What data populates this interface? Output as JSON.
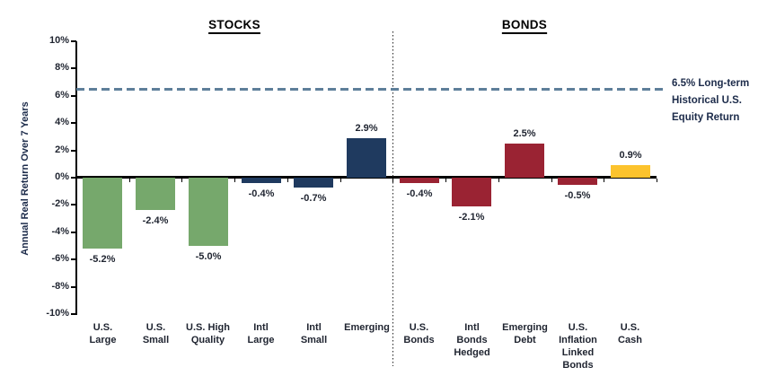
{
  "chart_data": {
    "type": "bar",
    "group_titles": [
      "STOCKS",
      "BONDS"
    ],
    "ylabel": "Annual Real Return Over 7 Years",
    "ylim": [
      -10,
      10
    ],
    "ytick_values": [
      10,
      8,
      6,
      4,
      2,
      0,
      -2,
      -4,
      -6,
      -8,
      -10
    ],
    "ytick_labels": [
      "10%",
      "8%",
      "6%",
      "4%",
      "2%",
      "0%",
      "-2%",
      "-4%",
      "-6%",
      "-8%",
      "-10%"
    ],
    "grid": false,
    "reference_line": {
      "value": 6.5,
      "label": "6.5% Long-term\nHistorical U.S.\nEquity Return",
      "style": "dashed",
      "color": "#5E7F9A"
    },
    "colors": {
      "us_stocks": "#76A86C",
      "intl_stocks": "#1F3A5F",
      "bonds": "#9A2333",
      "cash": "#FCC32D"
    },
    "points": [
      {
        "group": "STOCKS",
        "category": "U.S.\nLarge",
        "value": -5.2,
        "label": "-5.2%",
        "color": "#76A86C"
      },
      {
        "group": "STOCKS",
        "category": "U.S.\nSmall",
        "value": -2.4,
        "label": "-2.4%",
        "color": "#76A86C"
      },
      {
        "group": "STOCKS",
        "category": "U.S. High\nQuality",
        "value": -5.0,
        "label": "-5.0%",
        "color": "#76A86C"
      },
      {
        "group": "STOCKS",
        "category": "Intl\nLarge",
        "value": -0.4,
        "label": "-0.4%",
        "color": "#1F3A5F"
      },
      {
        "group": "STOCKS",
        "category": "Intl\nSmall",
        "value": -0.7,
        "label": "-0.7%",
        "color": "#1F3A5F"
      },
      {
        "group": "STOCKS",
        "category": "Emerging",
        "value": 2.9,
        "label": "2.9%",
        "color": "#1F3A5F"
      },
      {
        "group": "BONDS",
        "category": "U.S.\nBonds",
        "value": -0.4,
        "label": "-0.4%",
        "color": "#9A2333"
      },
      {
        "group": "BONDS",
        "category": "Intl\nBonds\nHedged",
        "value": -2.1,
        "label": "-2.1%",
        "color": "#9A2333"
      },
      {
        "group": "BONDS",
        "category": "Emerging\nDebt",
        "value": 2.5,
        "label": "2.5%",
        "color": "#9A2333"
      },
      {
        "group": "BONDS",
        "category": "U.S.\nInflation\nLinked\nBonds",
        "value": -0.5,
        "label": "-0.5%",
        "color": "#9A2333"
      },
      {
        "group": "BONDS",
        "category": "U.S.\nCash",
        "value": 0.9,
        "label": "0.9%",
        "color": "#FCC32D"
      }
    ]
  }
}
